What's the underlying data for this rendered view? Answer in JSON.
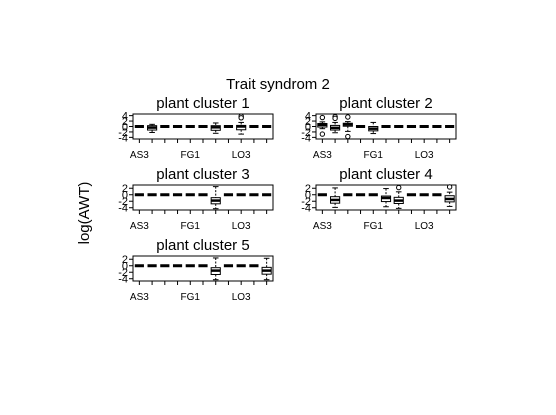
{
  "chart_data": {
    "type": "boxplot",
    "title": "Trait syndrom 2",
    "ylabel": "log(AWT)",
    "x_tick_labels": [
      "AS3",
      "FG1",
      "LO3"
    ],
    "y_tick_labels": [
      "2",
      "0",
      "-2",
      "-4"
    ],
    "ylim": [
      -4,
      3
    ],
    "panels": [
      {
        "title": "plant cluster 1",
        "y_ticks": [
          4,
          2,
          0,
          -2,
          -4
        ],
        "ylim": [
          -4.6,
          4.6
        ],
        "boxes": [
          {
            "med": 0,
            "q1": 0,
            "q3": 0,
            "lo": 0,
            "hi": 0
          },
          {
            "med": -0.4,
            "q1": -1.3,
            "q3": 0.3,
            "lo": -2.2,
            "hi": 0.8
          },
          {
            "med": 0,
            "q1": 0,
            "q3": 0,
            "lo": 0,
            "hi": 0
          },
          {
            "med": 0,
            "q1": 0,
            "q3": 0,
            "lo": 0,
            "hi": 0
          },
          {
            "med": 0,
            "q1": 0,
            "q3": 0,
            "lo": 0,
            "hi": 0
          },
          {
            "med": 0,
            "q1": 0,
            "q3": 0,
            "lo": 0,
            "hi": 0
          },
          {
            "med": -0.3,
            "q1": -1.4,
            "q3": 0.3,
            "lo": -2.5,
            "hi": 1.3
          },
          {
            "med": 0,
            "q1": 0,
            "q3": 0,
            "lo": 0,
            "hi": 0
          },
          {
            "med": 0,
            "q1": -1.2,
            "q3": 0.4,
            "lo": -2.8,
            "hi": 1.5,
            "outliers": [
              3.8,
              3.2
            ]
          },
          {
            "med": 0,
            "q1": 0,
            "q3": 0,
            "lo": 0,
            "hi": 0
          },
          {
            "med": 0,
            "q1": 0,
            "q3": 0,
            "lo": 0,
            "hi": 0
          }
        ]
      },
      {
        "title": "plant cluster 2",
        "y_ticks": [
          4,
          2,
          0,
          -2,
          -4
        ],
        "ylim": [
          -4.6,
          4.6
        ],
        "boxes": [
          {
            "med": 0.6,
            "q1": -0.2,
            "q3": 1.1,
            "lo": -0.8,
            "hi": 1.7,
            "outliers": [
              -2.8,
              3.3
            ]
          },
          {
            "med": -0.5,
            "q1": -1.3,
            "q3": 0.4,
            "lo": -2.3,
            "hi": 1.5,
            "outliers": [
              3.6,
              3.0
            ]
          },
          {
            "med": 0.7,
            "q1": 0.1,
            "q3": 1.2,
            "lo": -1.8,
            "hi": 1.8,
            "outliers": [
              -3.7,
              3.5
            ]
          },
          {
            "med": 0,
            "q1": 0,
            "q3": 0,
            "lo": 0,
            "hi": 0
          },
          {
            "med": -0.8,
            "q1": -1.6,
            "q3": 0.0,
            "lo": -2.6,
            "hi": 1.5
          },
          {
            "med": 0,
            "q1": 0,
            "q3": 0,
            "lo": 0,
            "hi": 0
          },
          {
            "med": 0,
            "q1": 0,
            "q3": 0,
            "lo": 0,
            "hi": 0
          },
          {
            "med": 0,
            "q1": 0,
            "q3": 0,
            "lo": 0,
            "hi": 0
          },
          {
            "med": 0,
            "q1": 0,
            "q3": 0,
            "lo": 0,
            "hi": 0
          },
          {
            "med": 0,
            "q1": 0,
            "q3": 0,
            "lo": 0,
            "hi": 0
          },
          {
            "med": 0,
            "q1": 0,
            "q3": 0,
            "lo": 0,
            "hi": 0
          }
        ]
      },
      {
        "title": "plant cluster 3",
        "y_ticks": [
          2,
          0,
          -2,
          -4
        ],
        "ylim": [
          -4.7,
          3
        ],
        "boxes": [
          {
            "med": 0,
            "q1": 0,
            "q3": 0,
            "lo": 0,
            "hi": 0
          },
          {
            "med": 0,
            "q1": 0,
            "q3": 0,
            "lo": 0,
            "hi": 0
          },
          {
            "med": 0,
            "q1": 0,
            "q3": 0,
            "lo": 0,
            "hi": 0
          },
          {
            "med": 0,
            "q1": 0,
            "q3": 0,
            "lo": 0,
            "hi": 0
          },
          {
            "med": 0,
            "q1": 0,
            "q3": 0,
            "lo": 0,
            "hi": 0
          },
          {
            "med": 0,
            "q1": 0,
            "q3": 0,
            "lo": 0,
            "hi": 0
          },
          {
            "med": -1.8,
            "q1": -2.8,
            "q3": -0.9,
            "lo": -4.3,
            "hi": 2.5
          },
          {
            "med": 0,
            "q1": 0,
            "q3": 0,
            "lo": 0,
            "hi": 0
          },
          {
            "med": 0,
            "q1": 0,
            "q3": 0,
            "lo": 0,
            "hi": 0
          },
          {
            "med": 0,
            "q1": 0,
            "q3": 0,
            "lo": 0,
            "hi": 0
          },
          {
            "med": 0,
            "q1": 0,
            "q3": 0,
            "lo": 0,
            "hi": 0
          }
        ]
      },
      {
        "title": "plant cluster 4",
        "y_ticks": [
          2,
          0,
          -2,
          -4
        ],
        "ylim": [
          -4.7,
          3
        ],
        "boxes": [
          {
            "med": 0,
            "q1": 0,
            "q3": 0,
            "lo": 0,
            "hi": 0
          },
          {
            "med": -1.6,
            "q1": -2.6,
            "q3": -0.6,
            "lo": -3.9,
            "hi": 2.1
          },
          {
            "med": 0,
            "q1": 0,
            "q3": 0,
            "lo": 0,
            "hi": 0
          },
          {
            "med": 0,
            "q1": 0,
            "q3": 0,
            "lo": 0,
            "hi": 0
          },
          {
            "med": 0,
            "q1": 0,
            "q3": 0,
            "lo": 0,
            "hi": 0
          },
          {
            "med": -1.0,
            "q1": -2.1,
            "q3": -0.4,
            "lo": -3.7,
            "hi": 1.9
          },
          {
            "med": -1.8,
            "q1": -2.7,
            "q3": -0.8,
            "lo": -4.2,
            "hi": 0.9,
            "outliers": [
              2.2
            ]
          },
          {
            "med": 0,
            "q1": 0,
            "q3": 0,
            "lo": 0,
            "hi": 0
          },
          {
            "med": 0,
            "q1": 0,
            "q3": 0,
            "lo": 0,
            "hi": 0
          },
          {
            "med": 0,
            "q1": 0,
            "q3": 0,
            "lo": 0,
            "hi": 0
          },
          {
            "med": -1.3,
            "q1": -2.2,
            "q3": -0.3,
            "lo": -3.6,
            "hi": 0.8,
            "outliers": [
              2.4
            ]
          }
        ]
      },
      {
        "title": "plant cluster 5",
        "y_ticks": [
          2,
          0,
          -2,
          -4
        ],
        "ylim": [
          -4.7,
          3
        ],
        "boxes": [
          {
            "med": 0,
            "q1": 0,
            "q3": 0,
            "lo": 0,
            "hi": 0
          },
          {
            "med": 0,
            "q1": 0,
            "q3": 0,
            "lo": 0,
            "hi": 0
          },
          {
            "med": 0,
            "q1": 0,
            "q3": 0,
            "lo": 0,
            "hi": 0
          },
          {
            "med": 0,
            "q1": 0,
            "q3": 0,
            "lo": 0,
            "hi": 0
          },
          {
            "med": 0,
            "q1": 0,
            "q3": 0,
            "lo": 0,
            "hi": 0
          },
          {
            "med": 0,
            "q1": 0,
            "q3": 0,
            "lo": 0,
            "hi": 0
          },
          {
            "med": -1.5,
            "q1": -2.7,
            "q3": -0.6,
            "lo": -4.3,
            "hi": 2.4
          },
          {
            "med": 0,
            "q1": 0,
            "q3": 0,
            "lo": 0,
            "hi": 0
          },
          {
            "med": 0,
            "q1": 0,
            "q3": 0,
            "lo": 0,
            "hi": 0
          },
          {
            "med": 0,
            "q1": 0,
            "q3": 0,
            "lo": 0,
            "hi": 0
          },
          {
            "med": -1.5,
            "q1": -2.6,
            "q3": -0.5,
            "lo": -4.3,
            "hi": 2.3
          }
        ]
      }
    ]
  }
}
